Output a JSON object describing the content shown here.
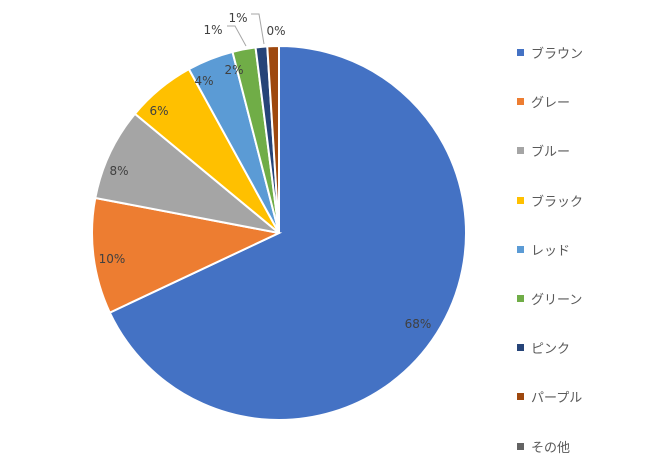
{
  "chart_data": {
    "type": "pie",
    "title": "",
    "categories": [
      "ブラウン",
      "グレー",
      "ブルー",
      "ブラック",
      "レッド",
      "グリーン",
      "ピンク",
      "パープル",
      "その他"
    ],
    "values": [
      68,
      10,
      8,
      6,
      4,
      2,
      1,
      1,
      0
    ],
    "value_labels": [
      "68%",
      "10%",
      "8%",
      "6%",
      "4%",
      "2%",
      "1%",
      "1%",
      "0%"
    ],
    "colors": [
      "#4472C4",
      "#ED7D31",
      "#A5A5A5",
      "#FFC000",
      "#5B9BD5",
      "#70AD47",
      "#264478",
      "#9E480E",
      "#636363"
    ],
    "legend_position": "right",
    "start_angle": "12 o'clock",
    "direction": "clockwise"
  }
}
